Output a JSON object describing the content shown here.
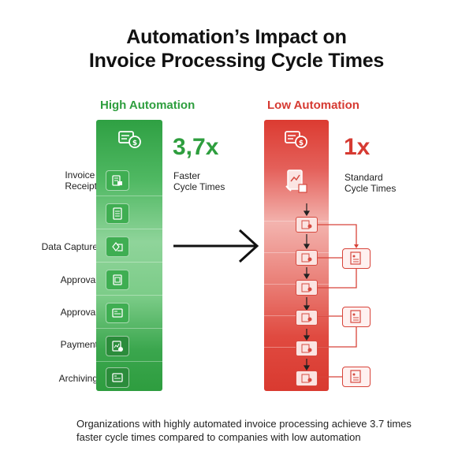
{
  "title": {
    "line1": "Automation’s Impact on",
    "line2": "Invoice Processing Cycle Times"
  },
  "high": {
    "heading": "High Automation",
    "multiplier": "3,7x",
    "sub_line1": "Faster",
    "sub_line2": "Cycle Times",
    "steps": [
      {
        "line1": "Invoice",
        "line2": "Receipt"
      },
      {
        "line1": "Data Capture"
      },
      {
        "line1": "Approval"
      },
      {
        "line1": "Approval"
      },
      {
        "line1": "Payment"
      },
      {
        "line1": "Archiving"
      }
    ],
    "color": "#2e9e3e"
  },
  "low": {
    "heading": "Low Automation",
    "multiplier": "1x",
    "sub_line1": "Standard",
    "sub_line2": "Cycle Times",
    "color": "#d63a32"
  },
  "footer": {
    "line1": "Organizations with highly automated invoice processing achieve 3.7 times",
    "line2": "faster cycle times compared to companies with low automation"
  }
}
